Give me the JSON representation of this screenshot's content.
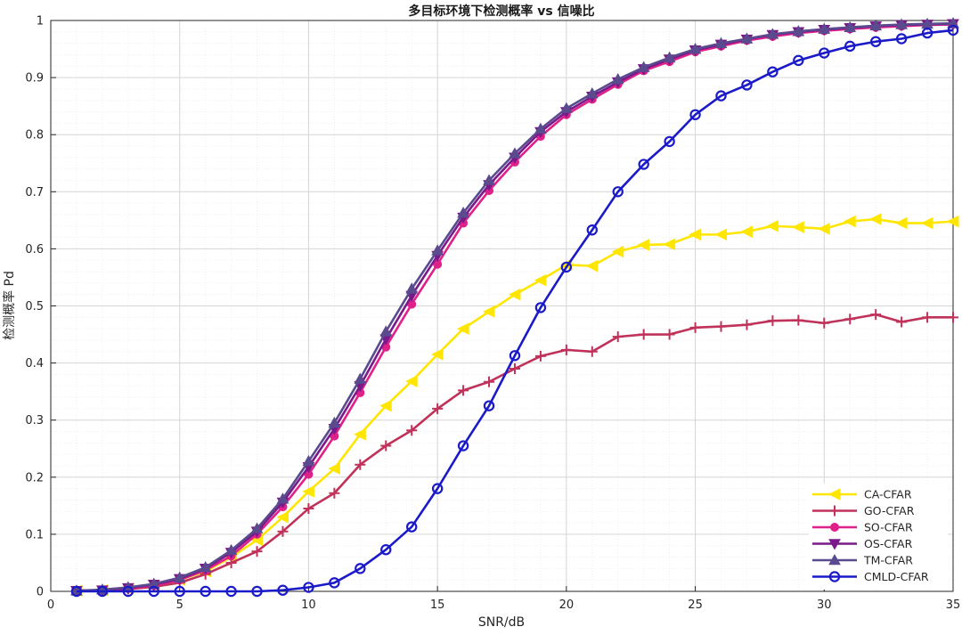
{
  "chart_data": {
    "type": "line",
    "title": "多目标环境下检测概率 vs 信噪比",
    "xlabel": "SNR/dB",
    "ylabel": "检测概率 Pd",
    "xlim": [
      0,
      35
    ],
    "ylim": [
      0,
      1
    ],
    "xticks": [
      0,
      5,
      10,
      15,
      20,
      25,
      30,
      35
    ],
    "yticks": [
      0,
      0.1,
      0.2,
      0.3,
      0.4,
      0.5,
      0.6,
      0.7,
      0.8,
      0.9,
      1
    ],
    "grid": true,
    "minor_grid": true,
    "legend_position": "bottom-right",
    "x": [
      1,
      2,
      3,
      4,
      5,
      6,
      7,
      8,
      9,
      10,
      11,
      12,
      13,
      14,
      15,
      16,
      17,
      18,
      19,
      20,
      21,
      22,
      23,
      24,
      25,
      26,
      27,
      28,
      29,
      30,
      31,
      32,
      33,
      34,
      35
    ],
    "series": [
      {
        "name": "CA-CFAR",
        "color": "#ffe600",
        "marker": "triangle-left",
        "values": [
          0.001,
          0.002,
          0.005,
          0.01,
          0.02,
          0.035,
          0.06,
          0.09,
          0.13,
          0.175,
          0.215,
          0.275,
          0.325,
          0.368,
          0.415,
          0.46,
          0.49,
          0.52,
          0.545,
          0.572,
          0.57,
          0.595,
          0.607,
          0.608,
          0.625,
          0.625,
          0.63,
          0.64,
          0.638,
          0.635,
          0.648,
          0.652,
          0.645,
          0.645,
          0.648
        ]
      },
      {
        "name": "GO-CFAR",
        "color": "#c0325a",
        "marker": "plus",
        "values": [
          0.001,
          0.002,
          0.004,
          0.008,
          0.015,
          0.03,
          0.05,
          0.07,
          0.105,
          0.145,
          0.172,
          0.222,
          0.255,
          0.282,
          0.32,
          0.352,
          0.367,
          0.39,
          0.412,
          0.423,
          0.42,
          0.446,
          0.45,
          0.45,
          0.462,
          0.464,
          0.467,
          0.474,
          0.475,
          0.47,
          0.477,
          0.485,
          0.472,
          0.48,
          0.48
        ]
      },
      {
        "name": "SO-CFAR",
        "color": "#e0218a",
        "marker": "circle-filled",
        "values": [
          0.001,
          0.002,
          0.005,
          0.01,
          0.02,
          0.037,
          0.062,
          0.1,
          0.148,
          0.205,
          0.272,
          0.348,
          0.428,
          0.503,
          0.573,
          0.645,
          0.702,
          0.752,
          0.797,
          0.835,
          0.862,
          0.888,
          0.912,
          0.928,
          0.945,
          0.955,
          0.965,
          0.972,
          0.978,
          0.982,
          0.985,
          0.988,
          0.99,
          0.992,
          0.993
        ]
      },
      {
        "name": "OS-CFAR",
        "color": "#7a1a8a",
        "marker": "triangle-down",
        "values": [
          0.001,
          0.002,
          0.006,
          0.012,
          0.022,
          0.04,
          0.068,
          0.105,
          0.156,
          0.218,
          0.285,
          0.36,
          0.442,
          0.518,
          0.588,
          0.655,
          0.712,
          0.76,
          0.805,
          0.84,
          0.867,
          0.892,
          0.915,
          0.932,
          0.948,
          0.958,
          0.967,
          0.975,
          0.98,
          0.984,
          0.987,
          0.99,
          0.992,
          0.993,
          0.994
        ]
      },
      {
        "name": "TM-CFAR",
        "color": "#5a4a8e",
        "marker": "triangle-up",
        "values": [
          0.001,
          0.003,
          0.007,
          0.013,
          0.024,
          0.042,
          0.072,
          0.11,
          0.162,
          0.228,
          0.295,
          0.372,
          0.455,
          0.53,
          0.597,
          0.663,
          0.72,
          0.767,
          0.81,
          0.846,
          0.872,
          0.897,
          0.918,
          0.935,
          0.95,
          0.96,
          0.968,
          0.976,
          0.981,
          0.985,
          0.988,
          0.991,
          0.993,
          0.994,
          0.995
        ]
      },
      {
        "name": "CMLD-CFAR",
        "color": "#1a1ac8",
        "marker": "circle-open",
        "values": [
          0,
          0,
          0,
          0,
          0,
          0,
          0,
          0,
          0.002,
          0.007,
          0.015,
          0.04,
          0.073,
          0.113,
          0.18,
          0.255,
          0.325,
          0.413,
          0.497,
          0.568,
          0.633,
          0.7,
          0.748,
          0.788,
          0.835,
          0.868,
          0.887,
          0.91,
          0.93,
          0.943,
          0.955,
          0.963,
          0.968,
          0.978,
          0.983
        ]
      }
    ]
  }
}
